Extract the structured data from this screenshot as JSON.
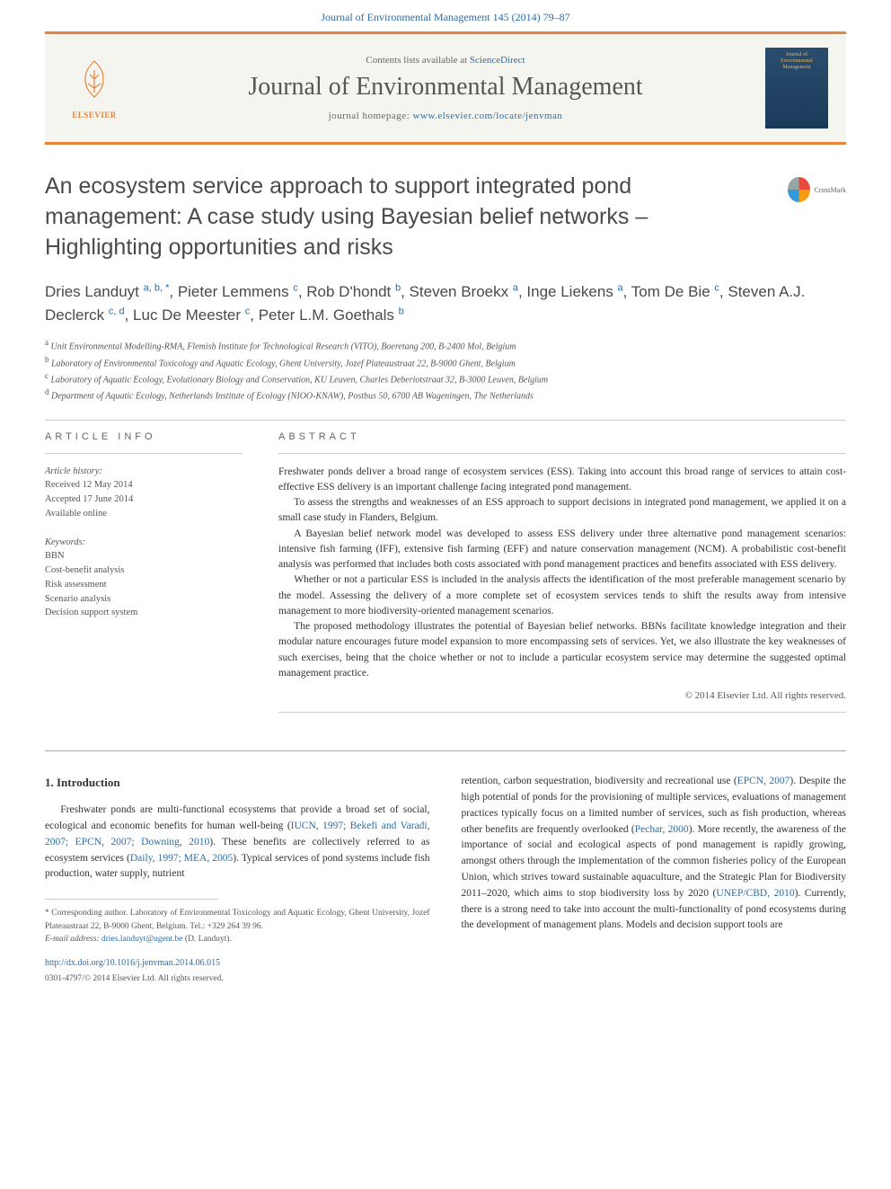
{
  "journal_link": "Journal of Environmental Management 145 (2014) 79–87",
  "header": {
    "contents_prefix": "Contents lists available at ",
    "contents_link": "ScienceDirect",
    "journal_name": "Journal of Environmental Management",
    "homepage_prefix": "journal homepage: ",
    "homepage_url": "www.elsevier.com/locate/jenvman",
    "publisher": "ELSEVIER",
    "cover_text": "Journal of Environmental Management"
  },
  "title": "An ecosystem service approach to support integrated pond management: A case study using Bayesian belief networks – Highlighting opportunities and risks",
  "crossmark": "CrossMark",
  "authors_html": "Dries Landuyt <sup>a, b, *</sup>, Pieter Lemmens <sup>c</sup>, Rob D'hondt <sup>b</sup>, Steven Broekx <sup>a</sup>, Inge Liekens <sup>a</sup>, Tom De Bie <sup>c</sup>, Steven A.J. Declerck <sup>c, d</sup>, Luc De Meester <sup>c</sup>, Peter L.M. Goethals <sup>b</sup>",
  "affiliations": {
    "a": "Unit Environmental Modelling-RMA, Flemish Institute for Technological Research (VITO), Boeretang 200, B-2400 Mol, Belgium",
    "b": "Laboratory of Environmental Toxicology and Aquatic Ecology, Ghent University, Jozef Plateaustraat 22, B-9000 Ghent, Belgium",
    "c": "Laboratory of Aquatic Ecology, Evolutionary Biology and Conservation, KU Leuven, Charles Deberiotstraat 32, B-3000 Leuven, Belgium",
    "d": "Department of Aquatic Ecology, Netherlands Institute of Ecology (NIOO-KNAW), Postbus 50, 6700 AB Wageningen, The Netherlands"
  },
  "article_info": {
    "header": "ARTICLE INFO",
    "history_label": "Article history:",
    "received": "Received 12 May 2014",
    "accepted": "Accepted 17 June 2014",
    "available": "Available online",
    "keywords_label": "Keywords:",
    "keywords": [
      "BBN",
      "Cost-benefit analysis",
      "Risk assessment",
      "Scenario analysis",
      "Decision support system"
    ]
  },
  "abstract": {
    "header": "ABSTRACT",
    "paragraphs": [
      "Freshwater ponds deliver a broad range of ecosystem services (ESS). Taking into account this broad range of services to attain cost-effective ESS delivery is an important challenge facing integrated pond management.",
      "To assess the strengths and weaknesses of an ESS approach to support decisions in integrated pond management, we applied it on a small case study in Flanders, Belgium.",
      "A Bayesian belief network model was developed to assess ESS delivery under three alternative pond management scenarios: intensive fish farming (IFF), extensive fish farming (EFF) and nature conservation management (NCM). A probabilistic cost-benefit analysis was performed that includes both costs associated with pond management practices and benefits associated with ESS delivery.",
      "Whether or not a particular ESS is included in the analysis affects the identification of the most preferable management scenario by the model. Assessing the delivery of a more complete set of ecosystem services tends to shift the results away from intensive management to more biodiversity-oriented management scenarios.",
      "The proposed methodology illustrates the potential of Bayesian belief networks. BBNs facilitate knowledge integration and their modular nature encourages future model expansion to more encompassing sets of services. Yet, we also illustrate the key weaknesses of such exercises, being that the choice whether or not to include a particular ecosystem service may determine the suggested optimal management practice."
    ],
    "copyright": "© 2014 Elsevier Ltd. All rights reserved."
  },
  "intro": {
    "header": "1.  Introduction",
    "col1": "Freshwater ponds are multi-functional ecosystems that provide a broad set of social, ecological and economic benefits for human well-being (<a class='cite' href='#'>IUCN, 1997; Bekefi and Varadi, 2007; EPCN, 2007; Downing, 2010</a>). These benefits are collectively referred to as ecosystem services (<a class='cite' href='#'>Daily, 1997; MEA, 2005</a>). Typical services of pond systems include fish production, water supply, nutrient",
    "col2": "retention, carbon sequestration, biodiversity and recreational use (<a class='cite' href='#'>EPCN, 2007</a>). Despite the high potential of ponds for the provisioning of multiple services, evaluations of management practices typically focus on a limited number of services, such as fish production, whereas other benefits are frequently overlooked (<a class='cite' href='#'>Pechar, 2000</a>). More recently, the awareness of the importance of social and ecological aspects of pond management is rapidly growing, amongst others through the implementation of the common fisheries policy of the European Union, which strives toward sustainable aquaculture, and the Strategic Plan for Biodiversity 2011–2020, which aims to stop biodiversity loss by 2020 (<a class='cite' href='#'>UNEP/CBD, 2010</a>). Currently, there is a strong need to take into account the multi-functionality of pond ecosystems during the development of management plans. Models and decision support tools are"
  },
  "footnote": {
    "corresponding": "* Corresponding author. Laboratory of Environmental Toxicology and Aquatic Ecology, Ghent University, Jozef Plateaustraat 22, B-9000 Ghent, Belgium. Tel.: +329 264 39 96.",
    "email_label": "E-mail address:",
    "email": "dries.landuyt@ugent.be",
    "email_name": "(D. Landuyt)."
  },
  "doi": "http://dx.doi.org/10.1016/j.jenvman.2014.06.015",
  "issn_copyright": "0301-4797/© 2014 Elsevier Ltd. All rights reserved.",
  "colors": {
    "orange": "#e8833a",
    "link": "#2e6da4",
    "text": "#333333",
    "gray": "#666666"
  }
}
